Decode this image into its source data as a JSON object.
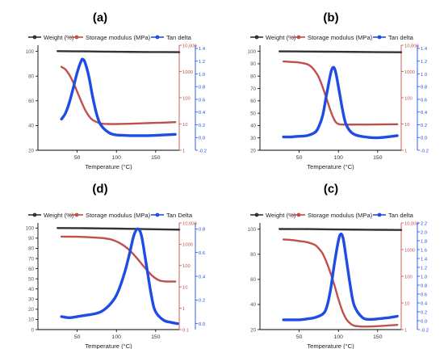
{
  "colors": {
    "weight": "#333333",
    "storage": "#c0504d",
    "tan": "#1f4de3",
    "axis": "#000000",
    "left_ticks": "#555555",
    "storage_ticks": "#c0504d",
    "tan_ticks": "#1f4de3"
  },
  "chart_data": [
    {
      "letter": "(a)",
      "type": "line",
      "xlabel": "Temperature (°C)",
      "legend": {
        "placement": "top",
        "items": [
          "Weight (%)",
          "Storage modulus (MPa)",
          "Tan delta"
        ]
      },
      "xlim": [
        0,
        180
      ],
      "xticks": [
        50,
        100,
        150
      ],
      "y_left": {
        "lim": [
          20,
          105
        ],
        "ticks": [
          20,
          40,
          60,
          80,
          100
        ]
      },
      "y_storage": {
        "log": true,
        "lim": [
          1,
          10000
        ],
        "ticks": [
          1,
          10,
          100,
          1000,
          10000
        ],
        "tick_labels": [
          "1",
          "10",
          "100",
          "1000",
          "10,000"
        ]
      },
      "y_tan": {
        "lim": [
          -0.2,
          1.45
        ],
        "ticks": [
          -0.2,
          0.0,
          0.2,
          0.4,
          0.6,
          0.8,
          1.0,
          1.2,
          1.4
        ],
        "tick_labels": [
          "-0.2",
          "0.0",
          "0.2",
          "0.4",
          "0.6",
          "0.8",
          "1.0",
          "1.2",
          "1.4"
        ]
      },
      "series": [
        {
          "name": "Weight (%)",
          "axis": "left",
          "x": [
            25,
            60,
            100,
            140,
            180
          ],
          "y": [
            100.2,
            100.0,
            99.7,
            99.5,
            99.4
          ]
        },
        {
          "name": "Storage modulus (MPa)",
          "axis": "storage",
          "x": [
            30,
            35,
            40,
            45,
            50,
            55,
            60,
            65,
            70,
            80,
            90,
            100,
            120,
            140,
            160,
            175
          ],
          "y": [
            1500,
            1200,
            750,
            380,
            170,
            75,
            35,
            20,
            14,
            10.5,
            10,
            10,
            10.3,
            10.8,
            11.3,
            11.8
          ]
        },
        {
          "name": "Tan delta",
          "axis": "tan",
          "x": [
            30,
            35,
            40,
            45,
            50,
            55,
            57,
            60,
            65,
            70,
            75,
            80,
            90,
            100,
            120,
            140,
            160,
            175
          ],
          "y": [
            0.29,
            0.38,
            0.55,
            0.78,
            1.02,
            1.2,
            1.23,
            1.18,
            0.95,
            0.62,
            0.36,
            0.2,
            0.08,
            0.04,
            0.03,
            0.03,
            0.04,
            0.05
          ]
        }
      ]
    },
    {
      "letter": "(b)",
      "type": "line",
      "xlabel": "Temperature (°C)",
      "legend": {
        "placement": "top",
        "items": [
          "Weight (%)",
          "Storage modulus (MPa)",
          "Tan delta"
        ]
      },
      "xlim": [
        0,
        180
      ],
      "xticks": [
        50,
        100,
        150
      ],
      "y_left": {
        "lim": [
          20,
          105
        ],
        "ticks": [
          20,
          30,
          40,
          50,
          60,
          70,
          80,
          90,
          100
        ]
      },
      "y_storage": {
        "log": true,
        "lim": [
          1,
          10000
        ],
        "ticks": [
          1,
          10,
          100,
          1000,
          10000
        ],
        "tick_labels": [
          "1",
          "10",
          "100",
          "1000",
          "10,000"
        ]
      },
      "y_tan": {
        "lim": [
          -0.2,
          1.45
        ],
        "ticks": [
          -0.2,
          0.0,
          0.2,
          0.4,
          0.6,
          0.8,
          1.0,
          1.2,
          1.4
        ],
        "tick_labels": [
          "-0.2",
          "0.0",
          "0.2",
          "0.4",
          "0.6",
          "0.8",
          "1.0",
          "1.2",
          "1.4"
        ]
      },
      "series": [
        {
          "name": "Weight (%)",
          "axis": "left",
          "x": [
            25,
            60,
            100,
            140,
            180
          ],
          "y": [
            100.0,
            99.9,
            99.7,
            99.5,
            99.3
          ]
        },
        {
          "name": "Storage modulus (MPa)",
          "axis": "storage",
          "x": [
            30,
            40,
            50,
            60,
            65,
            70,
            75,
            80,
            85,
            90,
            95,
            100,
            110,
            130,
            150,
            175
          ],
          "y": [
            2400,
            2300,
            2200,
            1900,
            1550,
            1050,
            600,
            250,
            90,
            32,
            14,
            10,
            9.5,
            9.5,
            9.6,
            9.8
          ]
        },
        {
          "name": "Tan delta",
          "axis": "tan",
          "x": [
            30,
            40,
            50,
            60,
            70,
            75,
            80,
            85,
            90,
            93,
            96,
            100,
            105,
            110,
            120,
            140,
            155,
            175
          ],
          "y": [
            0.01,
            0.01,
            0.02,
            0.03,
            0.08,
            0.17,
            0.35,
            0.68,
            1.0,
            1.1,
            1.05,
            0.8,
            0.45,
            0.2,
            0.05,
            0.0,
            0.0,
            0.03
          ]
        }
      ]
    },
    {
      "letter": "(d)",
      "type": "line",
      "xlabel": "Temperature (°C)",
      "legend": {
        "placement": "top",
        "items": [
          "Weight (%)",
          "Storage modulus (MPa)",
          "Tan Delta"
        ]
      },
      "xlim": [
        0,
        180
      ],
      "xticks": [
        50,
        100,
        150
      ],
      "y_left": {
        "lim": [
          0,
          105
        ],
        "ticks": [
          0,
          10,
          20,
          30,
          40,
          50,
          60,
          70,
          80,
          90,
          100
        ]
      },
      "y_storage": {
        "log": true,
        "lim": [
          0.1,
          10000
        ],
        "ticks": [
          0.1,
          1,
          10,
          100,
          1000,
          10000
        ],
        "tick_labels": [
          "0.1",
          "1",
          "10",
          "100",
          "1000",
          "10,000"
        ]
      },
      "y_tan": {
        "lim": [
          -0.05,
          0.85
        ],
        "ticks": [
          0.0,
          0.2,
          0.4,
          0.6,
          0.8
        ],
        "tick_labels": [
          "0.0",
          "0.2",
          "0.4",
          "0.6",
          "0.8"
        ]
      },
      "series": [
        {
          "name": "Weight (%)",
          "axis": "left",
          "x": [
            25,
            60,
            100,
            140,
            180
          ],
          "y": [
            100.0,
            99.8,
            99.4,
            98.9,
            98.4
          ]
        },
        {
          "name": "Storage modulus (MPa)",
          "axis": "storage",
          "x": [
            30,
            50,
            70,
            85,
            95,
            105,
            115,
            125,
            135,
            145,
            155,
            165,
            175
          ],
          "y": [
            2300,
            2250,
            2100,
            1900,
            1600,
            1100,
            600,
            250,
            90,
            35,
            20,
            18,
            18
          ]
        },
        {
          "name": "Tan Delta",
          "axis": "tan",
          "x": [
            30,
            40,
            50,
            60,
            70,
            80,
            90,
            100,
            110,
            117,
            122,
            127,
            132,
            138,
            145,
            150,
            160,
            170,
            178
          ],
          "y": [
            0.06,
            0.05,
            0.06,
            0.07,
            0.08,
            0.1,
            0.15,
            0.24,
            0.42,
            0.6,
            0.74,
            0.8,
            0.74,
            0.5,
            0.22,
            0.1,
            0.03,
            0.01,
            0.0
          ]
        }
      ]
    },
    {
      "letter": "(c)",
      "type": "line",
      "xlabel": "Temperature (°C)",
      "legend": {
        "placement": "top",
        "items": [
          "Weight (%)",
          "Storage modulus (MPa)",
          "Tan delta"
        ]
      },
      "xlim": [
        0,
        180
      ],
      "xticks": [
        50,
        100,
        150
      ],
      "y_left": {
        "lim": [
          20,
          105
        ],
        "ticks": [
          20,
          40,
          60,
          80,
          100
        ]
      },
      "y_storage": {
        "log": true,
        "lim": [
          1,
          10000
        ],
        "ticks": [
          1,
          10,
          100,
          1000,
          10000
        ],
        "tick_labels": [
          "1",
          "10",
          "100",
          "1000",
          "10,000"
        ]
      },
      "y_tan": {
        "lim": [
          -0.2,
          2.2
        ],
        "ticks": [
          -0.2,
          0.0,
          0.2,
          0.4,
          0.6,
          0.8,
          1.0,
          1.2,
          1.4,
          1.6,
          1.8,
          2.0,
          2.2
        ],
        "tick_labels": [
          "-0.2",
          "0.0",
          "0.2",
          "0.4",
          "0.6",
          "0.8",
          "1.0",
          "1.2",
          "1.4",
          "1.6",
          "1.8",
          "2.0",
          "2.2"
        ]
      },
      "series": [
        {
          "name": "Weight (%)",
          "axis": "left",
          "x": [
            25,
            60,
            100,
            140,
            180
          ],
          "y": [
            100.2,
            100.1,
            99.8,
            99.6,
            99.4
          ]
        },
        {
          "name": "Storage modulus (MPa)",
          "axis": "storage",
          "x": [
            30,
            40,
            50,
            60,
            70,
            75,
            80,
            85,
            90,
            95,
            100,
            105,
            110,
            115,
            120,
            130,
            140,
            160,
            175
          ],
          "y": [
            2400,
            2300,
            2100,
            1900,
            1500,
            1100,
            700,
            330,
            130,
            45,
            14,
            5,
            2.5,
            1.7,
            1.4,
            1.3,
            1.3,
            1.4,
            1.5
          ]
        },
        {
          "name": "Tan delta",
          "axis": "tan",
          "x": [
            30,
            50,
            60,
            70,
            80,
            85,
            90,
            95,
            100,
            103,
            106,
            110,
            115,
            120,
            130,
            140,
            160,
            175
          ],
          "y": [
            0.02,
            0.02,
            0.04,
            0.07,
            0.15,
            0.3,
            0.7,
            1.3,
            1.8,
            1.95,
            1.85,
            1.4,
            0.8,
            0.35,
            0.08,
            0.03,
            0.06,
            0.1
          ]
        }
      ]
    }
  ]
}
